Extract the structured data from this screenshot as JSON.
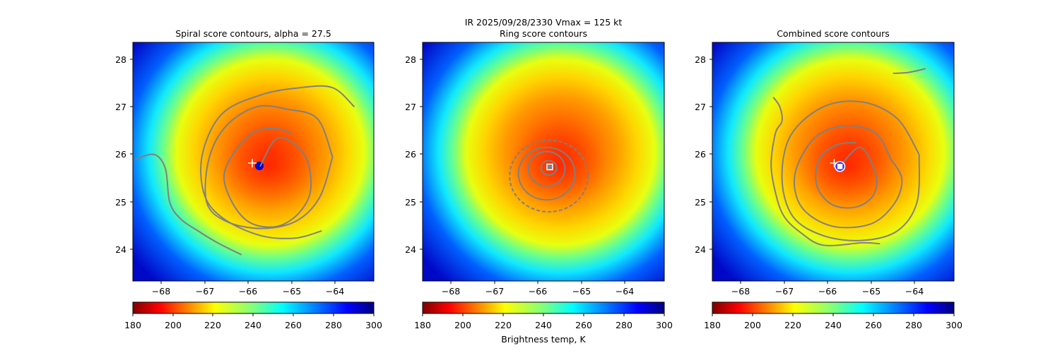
{
  "figure": {
    "suptitle_line1": "IR  2025/09/28/2330    Vmax = 125 kt",
    "colorbar_label": "Brightness temp, K"
  },
  "colors": {
    "contour": "#808080",
    "eye_cold": "#0000d0",
    "eye_warm": "#ff2000",
    "marker": "#ffffff",
    "combined_marker_ring": "#2d2dff"
  },
  "chart_data": [
    {
      "type": "heatmap",
      "title": "Spiral score contours, alpha = 27.5",
      "x_ticks": [
        "−68",
        "−67",
        "−66",
        "−65",
        "−64"
      ],
      "y_ticks": [
        "24",
        "25",
        "26",
        "27",
        "28"
      ],
      "xlim": [
        -68.65,
        -63.1
      ],
      "ylim": [
        23.35,
        28.35
      ],
      "colorbar": {
        "min": 180,
        "max": 300,
        "ticks": [
          "180",
          "200",
          "220",
          "240",
          "260",
          "280",
          "300"
        ],
        "colormap": "jet_r"
      },
      "storm_center": {
        "lon": -65.72,
        "lat": 25.75
      },
      "spiral_contours": [
        {
          "lon": [
            -65.72,
            -65.3,
            -64.7,
            -64.55,
            -64.8,
            -65.3,
            -65.9,
            -66.3,
            -66.55,
            -66.35,
            -65.9,
            -65.4,
            -65.0
          ],
          "lat": [
            25.75,
            26.35,
            26.0,
            25.3,
            24.8,
            24.5,
            24.55,
            24.9,
            25.5,
            26.0,
            26.45,
            26.55,
            26.45
          ]
        },
        {
          "lon": [
            -64.05,
            -64.4,
            -65.1,
            -65.8,
            -66.5,
            -66.9,
            -66.95,
            -66.5,
            -65.7,
            -64.9,
            -64.35,
            -64.05
          ],
          "lat": [
            25.95,
            26.75,
            26.95,
            27.0,
            26.6,
            25.9,
            25.0,
            24.6,
            24.45,
            24.6,
            25.1,
            25.95
          ]
        },
        {
          "lon": [
            -63.55,
            -64.05,
            -64.8,
            -65.7,
            -66.6,
            -67.05,
            -67.0,
            -66.55,
            -65.7,
            -64.9,
            -64.3
          ],
          "lat": [
            27.0,
            27.4,
            27.4,
            27.25,
            26.85,
            26.0,
            25.15,
            24.65,
            24.3,
            24.25,
            24.4
          ]
        },
        {
          "lon": [
            -68.6,
            -68.15,
            -67.9,
            -67.8,
            -67.55,
            -67.15,
            -66.7,
            -66.15
          ],
          "lat": [
            25.9,
            26.0,
            25.7,
            25.0,
            24.65,
            24.4,
            24.15,
            23.9
          ]
        }
      ],
      "markers": [
        {
          "shape": "plus",
          "lon": -65.9,
          "lat": 25.82
        }
      ]
    },
    {
      "type": "heatmap",
      "title": "Ring score contours",
      "x_ticks": [
        "−68",
        "−67",
        "−66",
        "−65",
        "−64"
      ],
      "y_ticks": [
        "24",
        "25",
        "26",
        "27",
        "28"
      ],
      "xlim": [
        -68.65,
        -63.1
      ],
      "ylim": [
        23.35,
        28.35
      ],
      "colorbar": {
        "min": 180,
        "max": 300,
        "ticks": [
          "180",
          "200",
          "220",
          "240",
          "260",
          "280",
          "300"
        ],
        "colormap": "jet_r"
      },
      "storm_center": {
        "lon": -65.72,
        "lat": 25.75
      },
      "ring_contours": [
        {
          "lon": -65.75,
          "lat": 25.72,
          "rx": 0.18,
          "ry": 0.15
        },
        {
          "lon": -65.8,
          "lat": 25.7,
          "rx": 0.42,
          "ry": 0.36
        },
        {
          "lon": -65.8,
          "lat": 25.6,
          "rx": 0.65,
          "ry": 0.55
        },
        {
          "lon": -65.75,
          "lat": 25.55,
          "rx": 0.9,
          "ry": 0.75
        }
      ],
      "markers": [
        {
          "shape": "square",
          "lon": -65.73,
          "lat": 25.74
        }
      ]
    },
    {
      "type": "heatmap",
      "title": "Combined score contours",
      "x_ticks": [
        "−68",
        "−67",
        "−66",
        "−65",
        "−64"
      ],
      "y_ticks": [
        "24",
        "25",
        "26",
        "27",
        "28"
      ],
      "xlim": [
        -68.65,
        -63.1
      ],
      "ylim": [
        23.35,
        28.35
      ],
      "colorbar": {
        "min": 180,
        "max": 300,
        "ticks": [
          "180",
          "200",
          "220",
          "240",
          "260",
          "280",
          "300"
        ],
        "colormap": "jet_r"
      },
      "storm_center": {
        "lon": -65.72,
        "lat": 25.75
      },
      "combined_contours": [
        {
          "lon": [
            -65.72,
            -65.25,
            -64.9,
            -64.95,
            -65.35,
            -65.9,
            -66.25,
            -66.2,
            -65.8,
            -65.35
          ],
          "lat": [
            25.75,
            26.15,
            25.6,
            25.15,
            24.9,
            24.95,
            25.35,
            25.9,
            26.2,
            26.25
          ]
        },
        {
          "lon": [
            -64.55,
            -64.9,
            -65.6,
            -66.3,
            -66.75,
            -66.6,
            -65.9,
            -65.0,
            -64.45,
            -64.3,
            -64.55
          ],
          "lat": [
            25.9,
            26.45,
            26.6,
            26.35,
            25.6,
            24.9,
            24.5,
            24.55,
            25.0,
            25.5,
            25.9
          ]
        },
        {
          "lon": [
            -63.9,
            -64.4,
            -65.2,
            -66.1,
            -66.85,
            -67.05,
            -66.8,
            -66.1,
            -65.2,
            -64.4,
            -63.95,
            -63.9
          ],
          "lat": [
            26.0,
            26.75,
            27.1,
            27.0,
            26.4,
            25.5,
            24.7,
            24.3,
            24.2,
            24.4,
            25.0,
            26.0
          ]
        },
        {
          "lon": [
            -67.25,
            -67.1,
            -67.05,
            -67.2,
            -67.3,
            -67.2,
            -67.0,
            -66.6,
            -66.1,
            -65.2,
            -64.8
          ],
          "lat": [
            27.2,
            27.0,
            26.7,
            26.45,
            25.8,
            25.2,
            24.7,
            24.35,
            24.1,
            24.15,
            24.13
          ]
        },
        {
          "lon": [
            -63.75,
            -64.15,
            -64.5
          ],
          "lat": [
            27.8,
            27.72,
            27.7
          ]
        }
      ],
      "markers": [
        {
          "shape": "plus",
          "lon": -65.85,
          "lat": 25.82
        },
        {
          "shape": "ring_square",
          "lon": -65.72,
          "lat": 25.75
        }
      ]
    }
  ]
}
